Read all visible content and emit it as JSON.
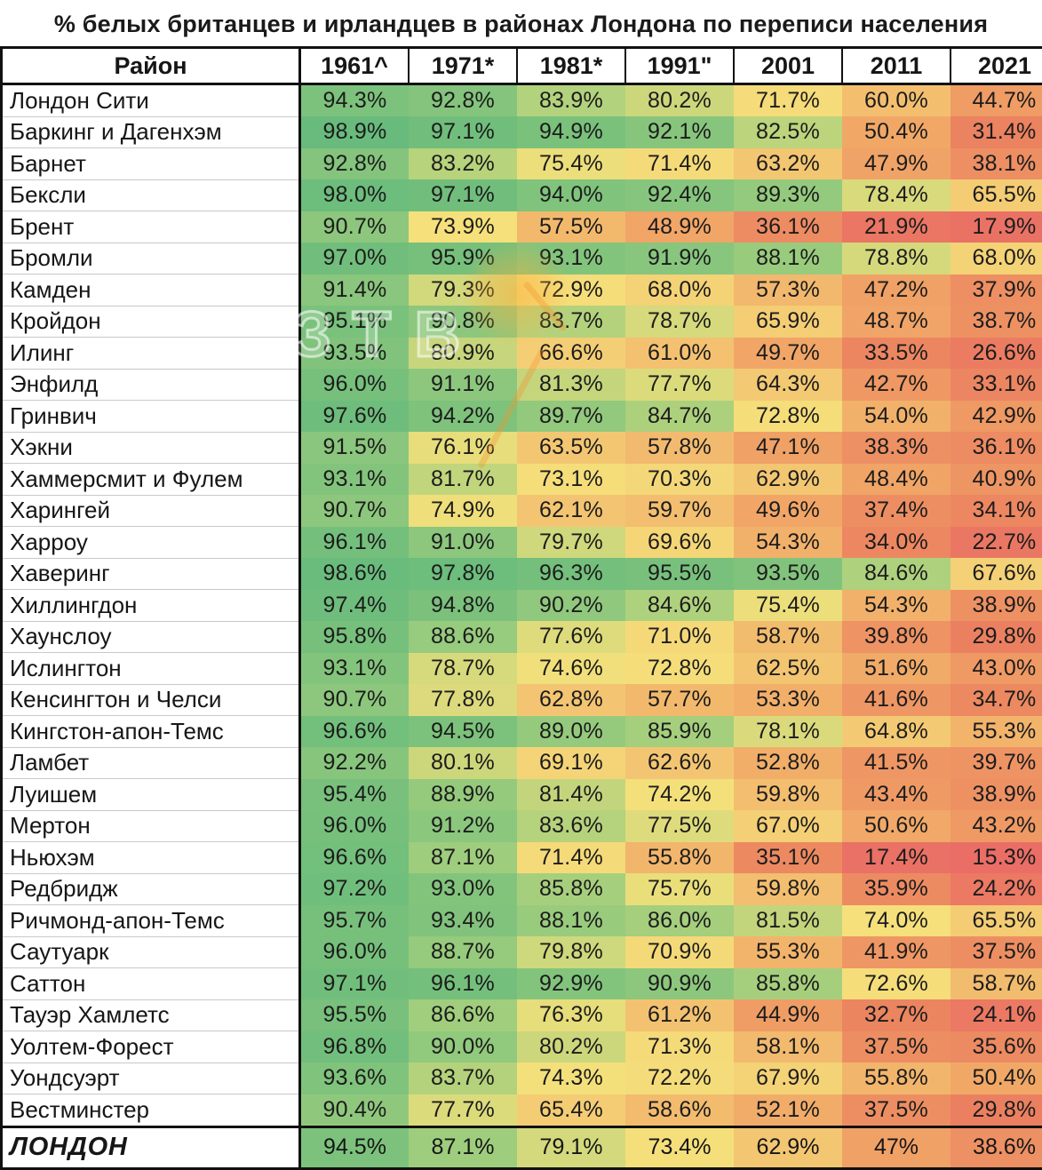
{
  "title": "% белых британцев и ирландцев в районах Лондона по переписи населения",
  "chart_data": {
    "type": "heatmap",
    "title": "% белых британцев и ирландцев в районах Лондона по переписи населения",
    "unit": "%",
    "row_header_label": "Район",
    "columns": [
      "1961^",
      "1971*",
      "1981*",
      "1991\"",
      "2001",
      "2011",
      "2021"
    ],
    "rows": [
      {
        "district": "Лондон Сити",
        "values": [
          "94.3%",
          "92.8%",
          "83.9%",
          "80.2%",
          "71.7%",
          "60.0%",
          "44.7%"
        ]
      },
      {
        "district": "Баркинг и Дагенхэм",
        "values": [
          "98.9%",
          "97.1%",
          "94.9%",
          "92.1%",
          "82.5%",
          "50.4%",
          "31.4%"
        ]
      },
      {
        "district": "Барнет",
        "values": [
          "92.8%",
          "83.2%",
          "75.4%",
          "71.4%",
          "63.2%",
          "47.9%",
          "38.1%"
        ]
      },
      {
        "district": "Бексли",
        "values": [
          "98.0%",
          "97.1%",
          "94.0%",
          "92.4%",
          "89.3%",
          "78.4%",
          "65.5%"
        ]
      },
      {
        "district": "Брент",
        "values": [
          "90.7%",
          "73.9%",
          "57.5%",
          "48.9%",
          "36.1%",
          "21.9%",
          "17.9%"
        ]
      },
      {
        "district": "Бромли",
        "values": [
          "97.0%",
          "95.9%",
          "93.1%",
          "91.9%",
          "88.1%",
          "78.8%",
          "68.0%"
        ]
      },
      {
        "district": "Камден",
        "values": [
          "91.4%",
          "79.3%",
          "72.9%",
          "68.0%",
          "57.3%",
          "47.2%",
          "37.9%"
        ]
      },
      {
        "district": "Кройдон",
        "values": [
          "95.1%",
          "90.8%",
          "83.7%",
          "78.7%",
          "65.9%",
          "48.7%",
          "38.7%"
        ]
      },
      {
        "district": "Илинг",
        "values": [
          "93.5%",
          "80.9%",
          "66.6%",
          "61.0%",
          "49.7%",
          "33.5%",
          "26.6%"
        ]
      },
      {
        "district": "Энфилд",
        "values": [
          "96.0%",
          "91.1%",
          "81.3%",
          "77.7%",
          "64.3%",
          "42.7%",
          "33.1%"
        ]
      },
      {
        "district": "Гринвич",
        "values": [
          "97.6%",
          "94.2%",
          "89.7%",
          "84.7%",
          "72.8%",
          "54.0%",
          "42.9%"
        ]
      },
      {
        "district": "Хэкни",
        "values": [
          "91.5%",
          "76.1%",
          "63.5%",
          "57.8%",
          "47.1%",
          "38.3%",
          "36.1%"
        ]
      },
      {
        "district": "Хаммерсмит и Фулем",
        "values": [
          "93.1%",
          "81.7%",
          "73.1%",
          "70.3%",
          "62.9%",
          "48.4%",
          "40.9%"
        ]
      },
      {
        "district": "Харингей",
        "values": [
          "90.7%",
          "74.9%",
          "62.1%",
          "59.7%",
          "49.6%",
          "37.4%",
          "34.1%"
        ]
      },
      {
        "district": "Харроу",
        "values": [
          "96.1%",
          "91.0%",
          "79.7%",
          "69.6%",
          "54.3%",
          "34.0%",
          "22.7%"
        ]
      },
      {
        "district": "Хаверинг",
        "values": [
          "98.6%",
          "97.8%",
          "96.3%",
          "95.5%",
          "93.5%",
          "84.6%",
          "67.6%"
        ]
      },
      {
        "district": "Хиллингдон",
        "values": [
          "97.4%",
          "94.8%",
          "90.2%",
          "84.6%",
          "75.4%",
          "54.3%",
          "38.9%"
        ]
      },
      {
        "district": "Хаунслоу",
        "values": [
          "95.8%",
          "88.6%",
          "77.6%",
          "71.0%",
          "58.7%",
          "39.8%",
          "29.8%"
        ]
      },
      {
        "district": "Ислингтон",
        "values": [
          "93.1%",
          "78.7%",
          "74.6%",
          "72.8%",
          "62.5%",
          "51.6%",
          "43.0%"
        ]
      },
      {
        "district": "Кенсингтон и Челси",
        "values": [
          "90.7%",
          "77.8%",
          "62.8%",
          "57.7%",
          "53.3%",
          "41.6%",
          "34.7%"
        ]
      },
      {
        "district": "Кингстон-апон-Темс",
        "values": [
          "96.6%",
          "94.5%",
          "89.0%",
          "85.9%",
          "78.1%",
          "64.8%",
          "55.3%"
        ]
      },
      {
        "district": "Ламбет",
        "values": [
          "92.2%",
          "80.1%",
          "69.1%",
          "62.6%",
          "52.8%",
          "41.5%",
          "39.7%"
        ]
      },
      {
        "district": "Луишем",
        "values": [
          "95.4%",
          "88.9%",
          "81.4%",
          "74.2%",
          "59.8%",
          "43.4%",
          "38.9%"
        ]
      },
      {
        "district": "Мертон",
        "values": [
          "96.0%",
          "91.2%",
          "83.6%",
          "77.5%",
          "67.0%",
          "50.6%",
          "43.2%"
        ]
      },
      {
        "district": "Ньюхэм",
        "values": [
          "96.6%",
          "87.1%",
          "71.4%",
          "55.8%",
          "35.1%",
          "17.4%",
          "15.3%"
        ]
      },
      {
        "district": "Редбридж",
        "values": [
          "97.2%",
          "93.0%",
          "85.8%",
          "75.7%",
          "59.8%",
          "35.9%",
          "24.2%"
        ]
      },
      {
        "district": "Ричмонд-апон-Темс",
        "values": [
          "95.7%",
          "93.4%",
          "88.1%",
          "86.0%",
          "81.5%",
          "74.0%",
          "65.5%"
        ]
      },
      {
        "district": "Саутуарк",
        "values": [
          "96.0%",
          "88.7%",
          "79.8%",
          "70.9%",
          "55.3%",
          "41.9%",
          "37.5%"
        ]
      },
      {
        "district": "Саттон",
        "values": [
          "97.1%",
          "96.1%",
          "92.9%",
          "90.9%",
          "85.8%",
          "72.6%",
          "58.7%"
        ]
      },
      {
        "district": "Тауэр Хамлетс",
        "values": [
          "95.5%",
          "86.6%",
          "76.3%",
          "61.2%",
          "44.9%",
          "32.7%",
          "24.1%"
        ]
      },
      {
        "district": "Уолтем-Форест",
        "values": [
          "96.8%",
          "90.0%",
          "80.2%",
          "71.3%",
          "58.1%",
          "37.5%",
          "35.6%"
        ]
      },
      {
        "district": "Уондсуэрт",
        "values": [
          "93.6%",
          "83.7%",
          "74.3%",
          "72.2%",
          "67.9%",
          "55.8%",
          "50.4%"
        ]
      },
      {
        "district": "Вестминстер",
        "values": [
          "90.4%",
          "77.7%",
          "65.4%",
          "58.6%",
          "52.1%",
          "37.5%",
          "29.8%"
        ]
      }
    ],
    "total": {
      "district": "ЛОНДОН",
      "values": [
        "94.5%",
        "87.1%",
        "79.1%",
        "73.4%",
        "62.9%",
        "47%",
        "38.6%"
      ]
    },
    "legend": "none",
    "grid": "off"
  },
  "watermark": {
    "text": "ЗТВ"
  },
  "colors": {
    "border": "#111111",
    "row_divider": "#c9c9c9",
    "text": "#161616",
    "heatmap_stops": [
      [
        15,
        234,
        110,
        102
      ],
      [
        31.4,
        235,
        130,
        96
      ],
      [
        50,
        241,
        167,
        103
      ],
      [
        74,
        245,
        224,
        123
      ],
      [
        87,
        158,
        205,
        125
      ],
      [
        99,
        104,
        187,
        124
      ]
    ]
  }
}
